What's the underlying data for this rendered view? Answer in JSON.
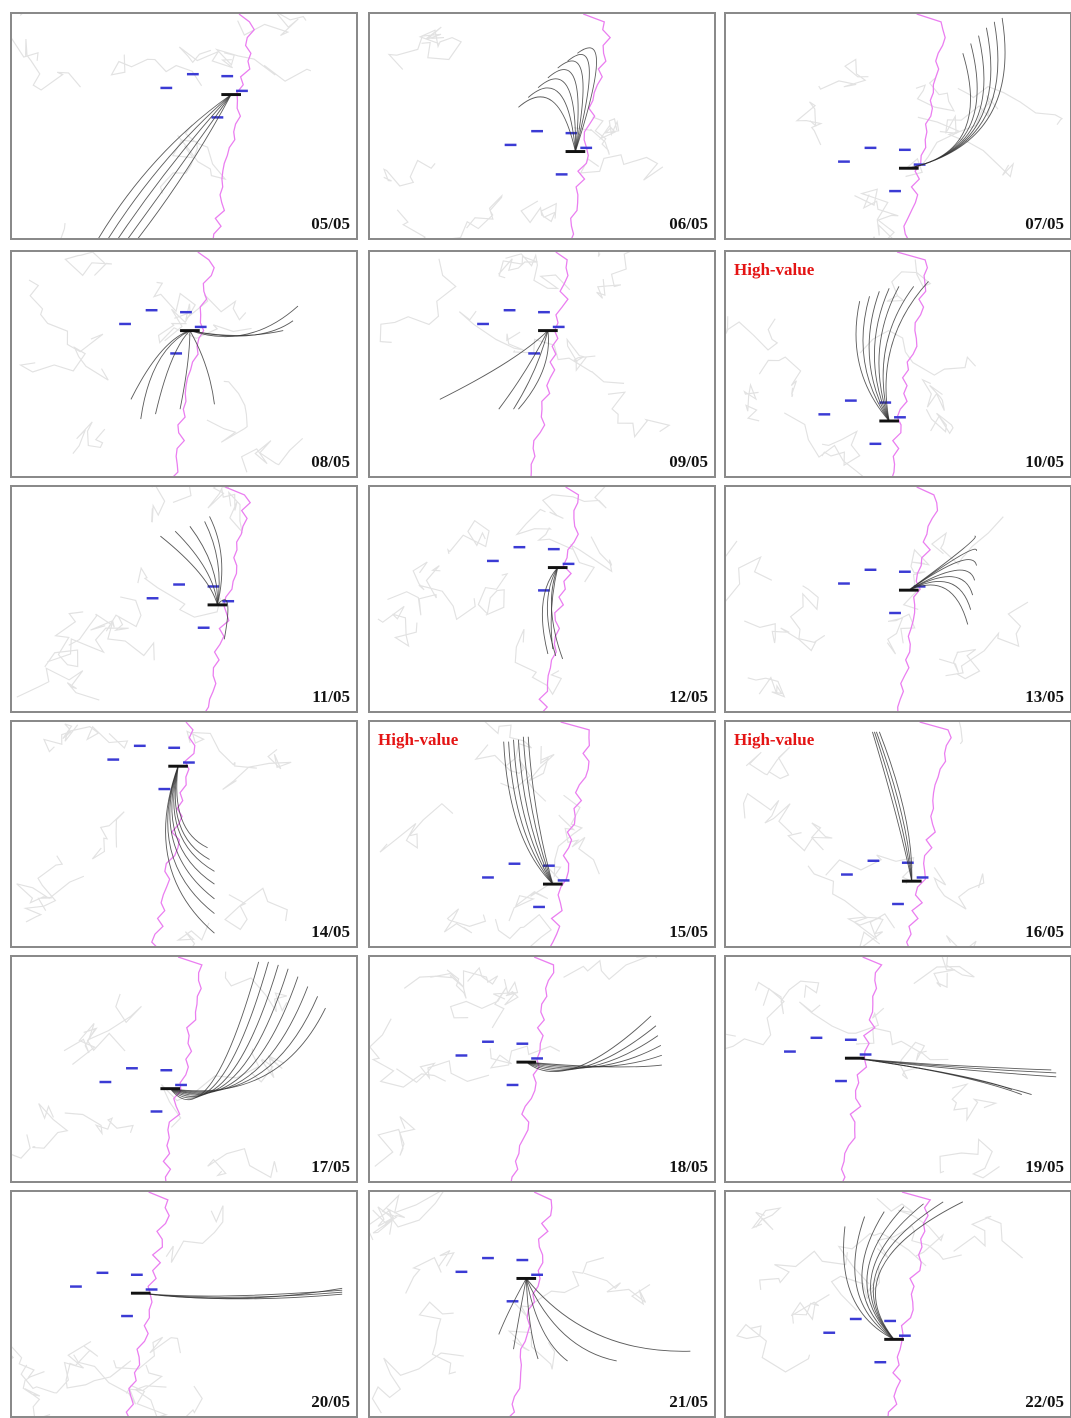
{
  "panels": [
    {
      "date": "05/05",
      "high_value": "",
      "start": [
        222,
        82
      ],
      "traj": [
        [
          140,
          140,
          86,
          230
        ],
        [
          150,
          145,
          96,
          230
        ],
        [
          160,
          150,
          106,
          230
        ],
        [
          170,
          156,
          116,
          230
        ],
        [
          180,
          160,
          126,
          230
        ]
      ]
    },
    {
      "date": "06/05",
      "high_value": "",
      "start": [
        208,
        140
      ],
      "traj": [
        [
          190,
          60,
          150,
          95
        ],
        [
          200,
          50,
          160,
          85
        ],
        [
          210,
          40,
          170,
          75
        ],
        [
          220,
          30,
          180,
          65
        ],
        [
          230,
          22,
          190,
          55
        ],
        [
          240,
          15,
          200,
          48
        ],
        [
          250,
          10,
          210,
          40
        ]
      ]
    },
    {
      "date": "07/05",
      "high_value": "",
      "start": [
        185,
        157
      ],
      "traj": [
        [
          270,
          140,
          240,
          40
        ],
        [
          276,
          138,
          248,
          30
        ],
        [
          282,
          136,
          256,
          22
        ],
        [
          288,
          134,
          264,
          14
        ],
        [
          294,
          132,
          272,
          8
        ],
        [
          300,
          130,
          280,
          4
        ]
      ]
    },
    {
      "date": "08/05",
      "high_value": "",
      "start": [
        180,
        80
      ],
      "traj": [
        [
          150,
          90,
          120,
          150
        ],
        [
          140,
          100,
          130,
          170
        ],
        [
          160,
          100,
          145,
          165
        ],
        [
          180,
          110,
          170,
          160
        ],
        [
          200,
          115,
          205,
          155
        ],
        [
          240,
          100,
          290,
          55
        ],
        [
          250,
          95,
          285,
          70
        ],
        [
          230,
          90,
          275,
          80
        ]
      ]
    },
    {
      "date": "09/05",
      "high_value": "",
      "start": [
        180,
        80
      ],
      "traj": [
        [
          160,
          120,
          130,
          160
        ],
        [
          170,
          120,
          145,
          160
        ],
        [
          185,
          120,
          150,
          160
        ],
        [
          150,
          110,
          70,
          150
        ]
      ]
    },
    {
      "date": "10/05",
      "high_value": "High-value",
      "start": [
        165,
        172
      ],
      "traj": [
        [
          120,
          120,
          135,
          50
        ],
        [
          125,
          115,
          145,
          45
        ],
        [
          130,
          110,
          155,
          40
        ],
        [
          135,
          105,
          165,
          37
        ],
        [
          140,
          100,
          175,
          35
        ],
        [
          145,
          95,
          190,
          35
        ],
        [
          150,
          90,
          205,
          30
        ]
      ]
    },
    {
      "date": "11/05",
      "high_value": "",
      "start": [
        208,
        120
      ],
      "traj": [
        [
          200,
          90,
          150,
          50
        ],
        [
          205,
          85,
          165,
          45
        ],
        [
          210,
          80,
          180,
          40
        ],
        [
          215,
          75,
          195,
          35
        ],
        [
          220,
          70,
          200,
          30
        ],
        [
          225,
          100,
          215,
          155
        ]
      ]
    },
    {
      "date": "12/05",
      "high_value": "",
      "start": [
        190,
        82
      ],
      "traj": [
        [
          165,
          110,
          180,
          170
        ],
        [
          170,
          115,
          188,
          172
        ],
        [
          175,
          120,
          195,
          175
        ],
        [
          180,
          125,
          185,
          165
        ]
      ]
    },
    {
      "date": "13/05",
      "high_value": "",
      "start": [
        185,
        105
      ],
      "traj": [
        [
          230,
          85,
          245,
          140
        ],
        [
          235,
          80,
          248,
          125
        ],
        [
          240,
          75,
          250,
          110
        ],
        [
          245,
          70,
          252,
          95
        ],
        [
          250,
          60,
          254,
          80
        ],
        [
          255,
          55,
          254,
          65
        ],
        [
          260,
          50,
          252,
          50
        ]
      ]
    },
    {
      "date": "14/05",
      "high_value": "",
      "start": [
        168,
        45
      ],
      "traj": [
        [
          130,
          150,
          205,
          215
        ],
        [
          135,
          140,
          205,
          195
        ],
        [
          140,
          130,
          205,
          180
        ],
        [
          145,
          125,
          205,
          165
        ],
        [
          150,
          120,
          205,
          152
        ],
        [
          155,
          115,
          200,
          140
        ],
        [
          160,
          110,
          198,
          128
        ]
      ]
    },
    {
      "date": "15/05",
      "high_value": "High-value",
      "start": [
        185,
        165
      ],
      "traj": [
        [
          140,
          120,
          135,
          20
        ],
        [
          145,
          115,
          140,
          20
        ],
        [
          150,
          110,
          145,
          18
        ],
        [
          155,
          105,
          150,
          18
        ],
        [
          160,
          100,
          155,
          15
        ],
        [
          165,
          95,
          160,
          15
        ]
      ]
    },
    {
      "date": "16/05",
      "high_value": "High-value",
      "start": [
        188,
        162
      ],
      "traj": [
        [
          175,
          100,
          148,
          10
        ],
        [
          180,
          100,
          150,
          10
        ],
        [
          185,
          100,
          152,
          10
        ],
        [
          190,
          100,
          155,
          10
        ]
      ]
    },
    {
      "date": "17/05",
      "high_value": "",
      "start": [
        160,
        134
      ],
      "traj": [
        [
          200,
          185,
          250,
          5
        ],
        [
          210,
          180,
          260,
          5
        ],
        [
          220,
          175,
          270,
          8
        ],
        [
          230,
          170,
          280,
          12
        ],
        [
          240,
          165,
          290,
          20
        ],
        [
          250,
          160,
          300,
          30
        ],
        [
          260,
          155,
          310,
          40
        ],
        [
          270,
          150,
          318,
          52
        ]
      ]
    },
    {
      "date": "18/05",
      "high_value": "",
      "start": [
        158,
        107
      ],
      "traj": [
        [
          200,
          140,
          285,
          60
        ],
        [
          210,
          135,
          290,
          70
        ],
        [
          220,
          130,
          292,
          80
        ],
        [
          230,
          125,
          295,
          90
        ],
        [
          240,
          120,
          296,
          100
        ],
        [
          250,
          115,
          296,
          110
        ]
      ]
    },
    {
      "date": "19/05",
      "high_value": "",
      "start": [
        130,
        103
      ],
      "traj": [
        [
          200,
          110,
          330,
          115
        ],
        [
          210,
          112,
          335,
          118
        ],
        [
          220,
          114,
          335,
          122
        ],
        [
          230,
          116,
          310,
          140
        ],
        [
          240,
          118,
          300,
          140
        ],
        [
          250,
          120,
          290,
          135
        ]
      ]
    },
    {
      "date": "20/05",
      "high_value": "",
      "start": [
        130,
        103
      ],
      "traj": [
        [
          200,
          110,
          335,
          100
        ],
        [
          210,
          112,
          335,
          102
        ],
        [
          220,
          114,
          335,
          104
        ],
        [
          230,
          116,
          335,
          98
        ]
      ]
    },
    {
      "date": "21/05",
      "high_value": "",
      "start": [
        158,
        88
      ],
      "traj": [
        [
          140,
          120,
          130,
          145
        ],
        [
          150,
          130,
          145,
          160
        ],
        [
          160,
          140,
          170,
          170
        ],
        [
          170,
          150,
          200,
          172
        ],
        [
          190,
          160,
          250,
          172
        ],
        [
          220,
          165,
          325,
          162
        ]
      ]
    },
    {
      "date": "22/05",
      "high_value": "",
      "start": [
        170,
        150
      ],
      "traj": [
        [
          110,
          120,
          120,
          35
        ],
        [
          110,
          110,
          140,
          25
        ],
        [
          110,
          100,
          160,
          20
        ],
        [
          110,
          90,
          180,
          15
        ],
        [
          110,
          85,
          200,
          12
        ],
        [
          110,
          80,
          220,
          10
        ],
        [
          110,
          75,
          240,
          10
        ]
      ]
    }
  ]
}
